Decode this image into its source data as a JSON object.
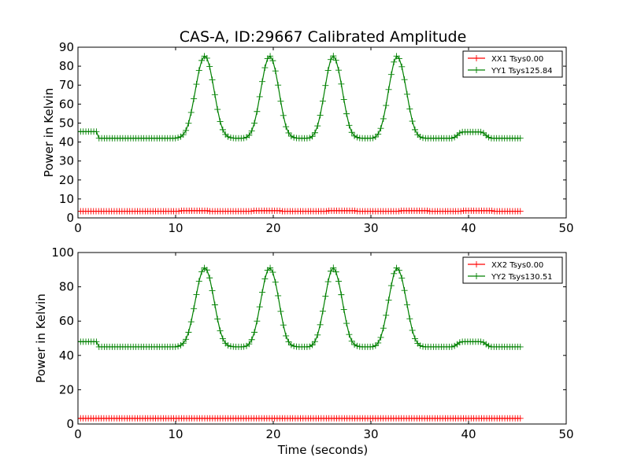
{
  "figure": {
    "title": "CAS-A, ID:29667 Calibrated Amplitude",
    "xlabel": "Time (seconds)"
  },
  "colors": {
    "xx": "#ff0000",
    "yy": "#008000",
    "axes": "#000000"
  },
  "chart_data": [
    {
      "type": "line",
      "title": "CAS-A, ID:29667 Calibrated Amplitude",
      "xlabel": "",
      "ylabel": "Power in Kelvin",
      "xlim": [
        0,
        50
      ],
      "ylim": [
        0,
        90
      ],
      "xticks": [
        0,
        10,
        20,
        30,
        40,
        50
      ],
      "yticks": [
        0,
        10,
        20,
        30,
        40,
        50,
        60,
        70,
        80,
        90
      ],
      "grid": false,
      "legend_position": "top-right",
      "x_range": [
        0,
        45.3
      ],
      "marker": "+",
      "series": [
        {
          "name": "XX1 Tsys0.00",
          "color": "#ff0000",
          "values": [
            3.5,
            3.5,
            3.5,
            3.5,
            3.5,
            3.5,
            3.5,
            3.5,
            3.5,
            3.5,
            3.5,
            3.5,
            3.5,
            3.5,
            3.5,
            3.5,
            3.5,
            3.5,
            3.5,
            3.5,
            3.5,
            3.5,
            3.5,
            3.5,
            3.5,
            3.5,
            3.5,
            3.5,
            3.5,
            3.5,
            3.5,
            3.5,
            3.5,
            3.5,
            3.5,
            3.5,
            3.5,
            3.5,
            3.5,
            3.5,
            3.8,
            3.8,
            3.8,
            3.8,
            3.8,
            3.8,
            3.8,
            3.8,
            3.8,
            3.8,
            3.8,
            3.5,
            3.5,
            3.5,
            3.5,
            3.5,
            3.5,
            3.5,
            3.5,
            3.5,
            3.5,
            3.5,
            3.5,
            3.5,
            3.5,
            3.5,
            3.5,
            3.5,
            3.8,
            3.8,
            3.8,
            3.8,
            3.8,
            3.8,
            3.8,
            3.8,
            3.8,
            3.8,
            3.8,
            3.5,
            3.5,
            3.5,
            3.5,
            3.5,
            3.5,
            3.5,
            3.5,
            3.5,
            3.5,
            3.5,
            3.5,
            3.5,
            3.5,
            3.5,
            3.5,
            3.5,
            3.5,
            3.8,
            3.8,
            3.8,
            3.8,
            3.8,
            3.8,
            3.8,
            3.8,
            3.8,
            3.8,
            3.8,
            3.5,
            3.5,
            3.5,
            3.5,
            3.5,
            3.5,
            3.5,
            3.5,
            3.5,
            3.5,
            3.5,
            3.5,
            3.5,
            3.5,
            3.5,
            3.5,
            3.5,
            3.8,
            3.8,
            3.8,
            3.8,
            3.8,
            3.8,
            3.8,
            3.8,
            3.8,
            3.8,
            3.8,
            3.5,
            3.5,
            3.5,
            3.5,
            3.5,
            3.5,
            3.5,
            3.5,
            3.5,
            3.5,
            3.5,
            3.5,
            3.5,
            3.8,
            3.8,
            3.8,
            3.8,
            3.8,
            3.8,
            3.8,
            3.8,
            3.8,
            3.8,
            3.8,
            3.8,
            3.5,
            3.5,
            3.5,
            3.5,
            3.5,
            3.5,
            3.5,
            3.5,
            3.5,
            3.5,
            3.5
          ]
        },
        {
          "name": "YY1 Tsys125.84",
          "color": "#008000",
          "values": [
            45.5,
            45.5,
            45.5,
            45.5,
            45.5,
            45.5,
            45.5,
            45.5,
            42.0,
            42.0,
            42.0,
            42.0,
            42.0,
            42.0,
            42.0,
            42.0,
            42.0,
            42.0,
            42.0,
            42.0,
            42.0,
            42.0,
            42.0,
            42.0,
            42.0,
            42.0,
            42.0,
            42.0,
            42.0,
            42.0,
            42.0,
            42.0,
            42.0,
            42.0,
            42.0,
            42.0,
            42.0,
            42.0,
            42.3,
            42.8,
            43.9,
            46.1,
            49.9,
            55.6,
            62.8,
            70.5,
            77.8,
            83.0,
            85.3,
            84.2,
            79.8,
            72.8,
            65.0,
            57.2,
            50.8,
            46.5,
            44.0,
            42.8,
            42.3,
            42.1,
            42.0,
            42.0,
            42.0,
            42.1,
            42.5,
            43.6,
            45.9,
            50.0,
            56.1,
            63.9,
            71.9,
            79.2,
            84.0,
            85.3,
            82.9,
            77.5,
            70.0,
            61.5,
            54.0,
            48.1,
            44.8,
            43.1,
            42.4,
            42.1,
            42.0,
            42.0,
            42.0,
            42.0,
            42.2,
            43.0,
            44.9,
            48.5,
            54.1,
            61.6,
            69.8,
            77.8,
            83.5,
            85.4,
            83.1,
            77.9,
            70.6,
            62.4,
            54.9,
            48.8,
            45.1,
            43.2,
            42.5,
            42.1,
            42.0,
            42.0,
            42.0,
            42.0,
            42.1,
            42.7,
            44.2,
            47.2,
            52.3,
            59.3,
            67.7,
            75.6,
            82.2,
            85.3,
            84.0,
            79.7,
            72.9,
            65.2,
            57.4,
            51.0,
            46.5,
            43.9,
            42.7,
            42.2,
            42.0,
            42.0,
            42.0,
            42.0,
            42.0,
            42.0,
            42.0,
            42.0,
            42.0,
            42.0,
            42.0,
            42.5,
            43.5,
            44.8,
            45.3,
            45.3,
            45.3,
            45.3,
            45.3,
            45.3,
            45.3,
            45.3,
            44.8,
            43.5,
            42.5,
            42.0,
            42.0,
            42.0,
            42.0,
            42.0,
            42.0,
            42.0,
            42.0,
            42.0,
            42.0,
            42.0,
            42.0
          ]
        }
      ]
    },
    {
      "type": "line",
      "title": "",
      "xlabel": "Time (seconds)",
      "ylabel": "Power in Kelvin",
      "xlim": [
        0,
        50
      ],
      "ylim": [
        0,
        100
      ],
      "xticks": [
        0,
        10,
        20,
        30,
        40,
        50
      ],
      "yticks": [
        0,
        20,
        40,
        60,
        80,
        100
      ],
      "grid": false,
      "legend_position": "top-right",
      "x_range": [
        0,
        45.3
      ],
      "marker": "+",
      "series": [
        {
          "name": "XX2 Tsys0.00",
          "color": "#ff0000",
          "values": [
            3.3,
            3.3,
            3.3,
            3.3,
            3.3,
            3.3,
            3.3,
            3.3,
            3.3,
            3.3,
            3.3,
            3.3,
            3.3,
            3.3,
            3.3,
            3.3,
            3.3,
            3.3,
            3.3,
            3.3,
            3.3,
            3.3,
            3.3,
            3.3,
            3.3,
            3.3,
            3.3,
            3.3,
            3.3,
            3.3,
            3.3,
            3.3,
            3.3,
            3.3,
            3.3,
            3.3,
            3.3,
            3.3,
            3.3,
            3.3,
            3.3,
            3.3,
            3.3,
            3.3,
            3.3,
            3.3,
            3.3,
            3.3,
            3.3,
            3.3,
            3.3,
            3.3,
            3.3,
            3.3,
            3.3,
            3.3,
            3.3,
            3.3,
            3.3,
            3.3,
            3.3,
            3.3,
            3.3,
            3.3,
            3.3,
            3.3,
            3.3,
            3.3,
            3.3,
            3.3,
            3.3,
            3.3,
            3.3,
            3.3,
            3.3,
            3.3,
            3.3,
            3.3,
            3.3,
            3.3,
            3.3,
            3.3,
            3.3,
            3.3,
            3.3,
            3.3,
            3.3,
            3.3,
            3.3,
            3.3,
            3.3,
            3.3,
            3.3,
            3.3,
            3.3,
            3.3,
            3.3,
            3.3,
            3.3,
            3.3,
            3.3,
            3.3,
            3.3,
            3.3,
            3.3,
            3.3,
            3.3,
            3.3,
            3.3,
            3.3,
            3.3,
            3.3,
            3.3,
            3.3,
            3.3,
            3.3,
            3.3,
            3.3,
            3.3,
            3.3,
            3.3,
            3.3,
            3.3,
            3.3,
            3.3,
            3.3,
            3.3,
            3.3,
            3.3,
            3.3,
            3.3,
            3.3,
            3.3,
            3.3,
            3.3,
            3.3,
            3.3,
            3.3,
            3.3,
            3.3,
            3.3,
            3.3,
            3.3,
            3.3,
            3.3,
            3.3,
            3.3,
            3.3,
            3.3,
            3.3,
            3.3,
            3.3,
            3.3,
            3.3,
            3.3,
            3.3,
            3.3,
            3.3,
            3.3,
            3.3,
            3.3,
            3.3,
            3.3,
            3.3,
            3.3,
            3.3,
            3.3,
            3.3,
            3.3,
            3.3,
            3.3,
            3.3
          ]
        },
        {
          "name": "YY2 Tsys130.51",
          "color": "#008000",
          "values": [
            48.0,
            48.0,
            48.0,
            48.0,
            48.0,
            48.0,
            48.0,
            48.0,
            45.0,
            45.0,
            45.0,
            45.0,
            45.0,
            45.0,
            45.0,
            45.0,
            45.0,
            45.0,
            45.0,
            45.0,
            45.0,
            45.0,
            45.0,
            45.0,
            45.0,
            45.0,
            45.0,
            45.0,
            45.0,
            45.0,
            45.0,
            45.0,
            45.0,
            45.0,
            45.0,
            45.0,
            45.0,
            45.0,
            45.3,
            45.9,
            47.1,
            49.4,
            53.5,
            59.6,
            67.3,
            75.5,
            83.3,
            88.8,
            91.0,
            89.8,
            85.2,
            77.8,
            69.5,
            61.2,
            54.4,
            49.8,
            47.1,
            45.8,
            45.3,
            45.1,
            45.0,
            45.0,
            45.0,
            45.1,
            45.5,
            46.7,
            49.2,
            53.5,
            60.0,
            68.3,
            76.8,
            84.6,
            89.7,
            91.0,
            88.5,
            82.7,
            74.8,
            65.7,
            57.7,
            51.4,
            47.9,
            46.1,
            45.4,
            45.1,
            45.0,
            45.0,
            45.0,
            45.0,
            45.2,
            46.1,
            48.1,
            51.9,
            57.9,
            65.8,
            74.5,
            83.0,
            89.1,
            91.1,
            88.7,
            83.2,
            75.4,
            66.7,
            58.7,
            52.2,
            48.3,
            46.3,
            45.5,
            45.1,
            45.0,
            45.0,
            45.0,
            45.0,
            45.1,
            45.7,
            47.3,
            50.5,
            55.9,
            63.4,
            72.3,
            80.7,
            87.7,
            91.0,
            89.6,
            85.1,
            77.9,
            69.6,
            61.4,
            54.6,
            49.8,
            47.0,
            45.7,
            45.2,
            45.0,
            45.0,
            45.0,
            45.0,
            45.0,
            45.0,
            45.0,
            45.0,
            45.0,
            45.0,
            45.0,
            45.5,
            46.5,
            47.6,
            48.0,
            48.0,
            48.0,
            48.0,
            48.0,
            48.0,
            48.0,
            48.0,
            47.6,
            46.5,
            45.5,
            45.0,
            45.0,
            45.0,
            45.0,
            45.0,
            45.0,
            45.0,
            45.0,
            45.0,
            45.0,
            45.0,
            45.0
          ]
        }
      ]
    }
  ]
}
